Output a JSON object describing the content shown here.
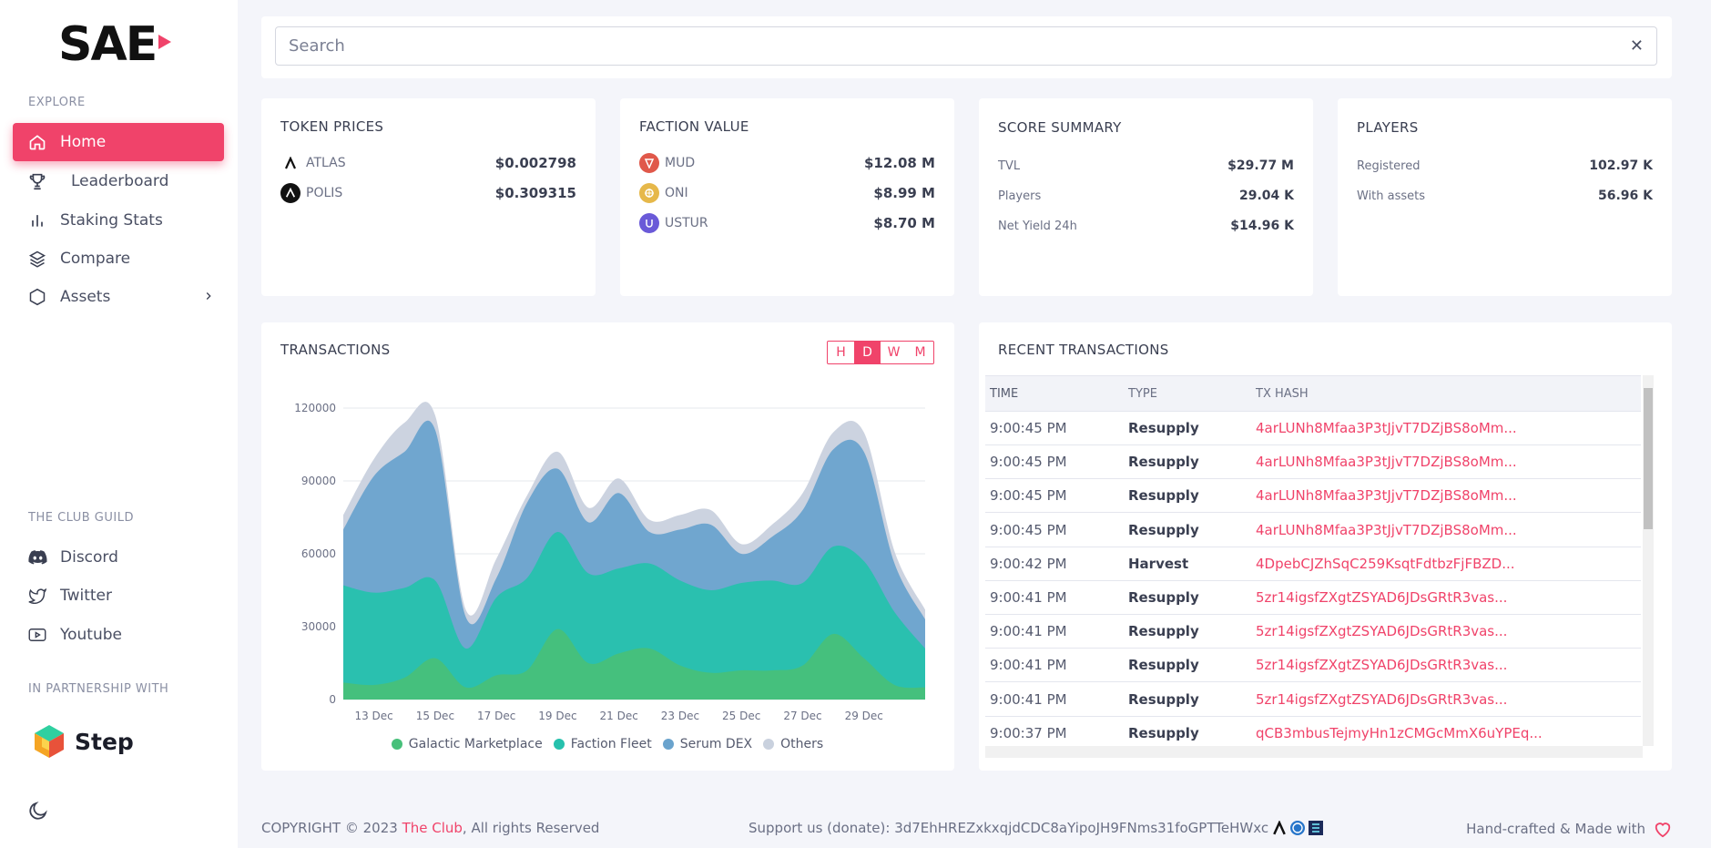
{
  "brand": {
    "logo_text": "SAE"
  },
  "sidebar": {
    "explore_label": "EXPLORE",
    "nav": [
      {
        "label": "Home",
        "icon": "home-icon",
        "active": true
      },
      {
        "label": "Leaderboard",
        "icon": "trophy-icon"
      },
      {
        "label": "Staking Stats",
        "icon": "bar-chart-icon"
      },
      {
        "label": "Compare",
        "icon": "layers-icon"
      },
      {
        "label": "Assets",
        "icon": "hexagon-icon"
      }
    ],
    "guild_label": "THE CLUB GUILD",
    "guild_links": [
      {
        "label": "Discord",
        "icon": "discord-icon"
      },
      {
        "label": "Twitter",
        "icon": "twitter-icon"
      },
      {
        "label": "Youtube",
        "icon": "youtube-icon"
      }
    ],
    "partner_label": "IN PARTNERSHIP WITH",
    "partner_name": "Step"
  },
  "search": {
    "placeholder": "Search",
    "value": ""
  },
  "token_prices": {
    "title": "TOKEN PRICES",
    "items": [
      {
        "name": "ATLAS",
        "value": "$0.002798"
      },
      {
        "name": "POLIS",
        "value": "$0.309315"
      }
    ]
  },
  "faction_value": {
    "title": "FACTION VALUE",
    "items": [
      {
        "name": "MUD",
        "value": "$12.08 M",
        "color": "#e0584a"
      },
      {
        "name": "ONI",
        "value": "$8.99 M",
        "color": "#e6b84a"
      },
      {
        "name": "USTUR",
        "value": "$8.70 M",
        "color": "#6a5ad8"
      }
    ]
  },
  "score_summary": {
    "title": "SCORE SUMMARY",
    "items": [
      {
        "name": "TVL",
        "value": "$29.77 M"
      },
      {
        "name": "Players",
        "value": "29.04 K"
      },
      {
        "name": "Net Yield 24h",
        "value": "$14.96 K"
      }
    ]
  },
  "players": {
    "title": "PLAYERS",
    "items": [
      {
        "name": "Registered",
        "value": "102.97 K"
      },
      {
        "name": "With assets",
        "value": "56.96 K"
      }
    ]
  },
  "transactions": {
    "title": "TRANSACTIONS",
    "ranges": [
      "H",
      "D",
      "W",
      "M"
    ],
    "selected_range": "D"
  },
  "chart_data": {
    "type": "area",
    "stacked": true,
    "x": [
      "12 Dec",
      "13 Dec",
      "14 Dec",
      "15 Dec",
      "16 Dec",
      "17 Dec",
      "18 Dec",
      "19 Dec",
      "20 Dec",
      "21 Dec",
      "22 Dec",
      "23 Dec",
      "24 Dec",
      "25 Dec",
      "26 Dec",
      "27 Dec",
      "28 Dec",
      "29 Dec",
      "30 Dec",
      "31 Dec"
    ],
    "x_tick_labels": [
      "13 Dec",
      "15 Dec",
      "17 Dec",
      "19 Dec",
      "21 Dec",
      "23 Dec",
      "25 Dec",
      "27 Dec",
      "29 Dec"
    ],
    "y_ticks": [
      0,
      30000,
      60000,
      90000,
      120000
    ],
    "ylim": [
      0,
      120000
    ],
    "series": [
      {
        "name": "Galactic Marketplace",
        "color": "#47c07a",
        "values": [
          7000,
          6000,
          9000,
          17000,
          5000,
          10000,
          12000,
          29000,
          15000,
          19000,
          21000,
          14000,
          11000,
          12000,
          12000,
          14000,
          27000,
          17000,
          6000,
          5000
        ]
      },
      {
        "name": "Faction Fleet",
        "color": "#26c1ad",
        "values": [
          40000,
          38000,
          37000,
          32000,
          16000,
          32000,
          38000,
          40000,
          37000,
          35000,
          35000,
          35000,
          34000,
          36000,
          37000,
          34000,
          36000,
          40000,
          30000,
          16000
        ]
      },
      {
        "name": "Serum DEX",
        "color": "#6aa3cd",
        "values": [
          23000,
          48000,
          56000,
          62000,
          13000,
          8000,
          31000,
          26000,
          21000,
          31000,
          13000,
          21000,
          27000,
          12000,
          18000,
          30000,
          40000,
          45000,
          20000,
          12000
        ]
      },
      {
        "name": "Others",
        "color": "#c9d1de",
        "values": [
          6000,
          7000,
          12000,
          6000,
          3000,
          8000,
          3000,
          7000,
          6000,
          6000,
          5000,
          6000,
          6000,
          4000,
          5000,
          7000,
          7000,
          8000,
          5000,
          4000
        ]
      }
    ]
  },
  "recent_transactions": {
    "title": "RECENT TRANSACTIONS",
    "columns": [
      "TIME",
      "TYPE",
      "TX HASH"
    ],
    "rows": [
      {
        "time": "9:00:45 PM",
        "type": "Resupply",
        "hash": "4arLUNh8Mfaa3P3tJjvT7DZjBS8oMm..."
      },
      {
        "time": "9:00:45 PM",
        "type": "Resupply",
        "hash": "4arLUNh8Mfaa3P3tJjvT7DZjBS8oMm..."
      },
      {
        "time": "9:00:45 PM",
        "type": "Resupply",
        "hash": "4arLUNh8Mfaa3P3tJjvT7DZjBS8oMm..."
      },
      {
        "time": "9:00:45 PM",
        "type": "Resupply",
        "hash": "4arLUNh8Mfaa3P3tJjvT7DZjBS8oMm..."
      },
      {
        "time": "9:00:42 PM",
        "type": "Harvest",
        "hash": "4DpebCJZhSqC259KsqtFdtbzFjFBZD..."
      },
      {
        "time": "9:00:41 PM",
        "type": "Resupply",
        "hash": "5zr14igsfZXgtZSYAD6JDsGRtR3vas..."
      },
      {
        "time": "9:00:41 PM",
        "type": "Resupply",
        "hash": "5zr14igsfZXgtZSYAD6JDsGRtR3vas..."
      },
      {
        "time": "9:00:41 PM",
        "type": "Resupply",
        "hash": "5zr14igsfZXgtZSYAD6JDsGRtR3vas..."
      },
      {
        "time": "9:00:41 PM",
        "type": "Resupply",
        "hash": "5zr14igsfZXgtZSYAD6JDsGRtR3vas..."
      },
      {
        "time": "9:00:37 PM",
        "type": "Resupply",
        "hash": "qCB3mbusTejmyHn1zCMGcMmX6uYPEq..."
      }
    ]
  },
  "footer": {
    "copyright_prefix": "COPYRIGHT © 2023 ",
    "club_link": "The Club",
    "copyright_suffix": ", All rights Reserved",
    "donate_text": "Support us (donate): 3d7EhHREZxkxqjdCDC8aYipoJH9FNms31foGPTTeHWxc",
    "made_with": "Hand-crafted & Made with"
  }
}
